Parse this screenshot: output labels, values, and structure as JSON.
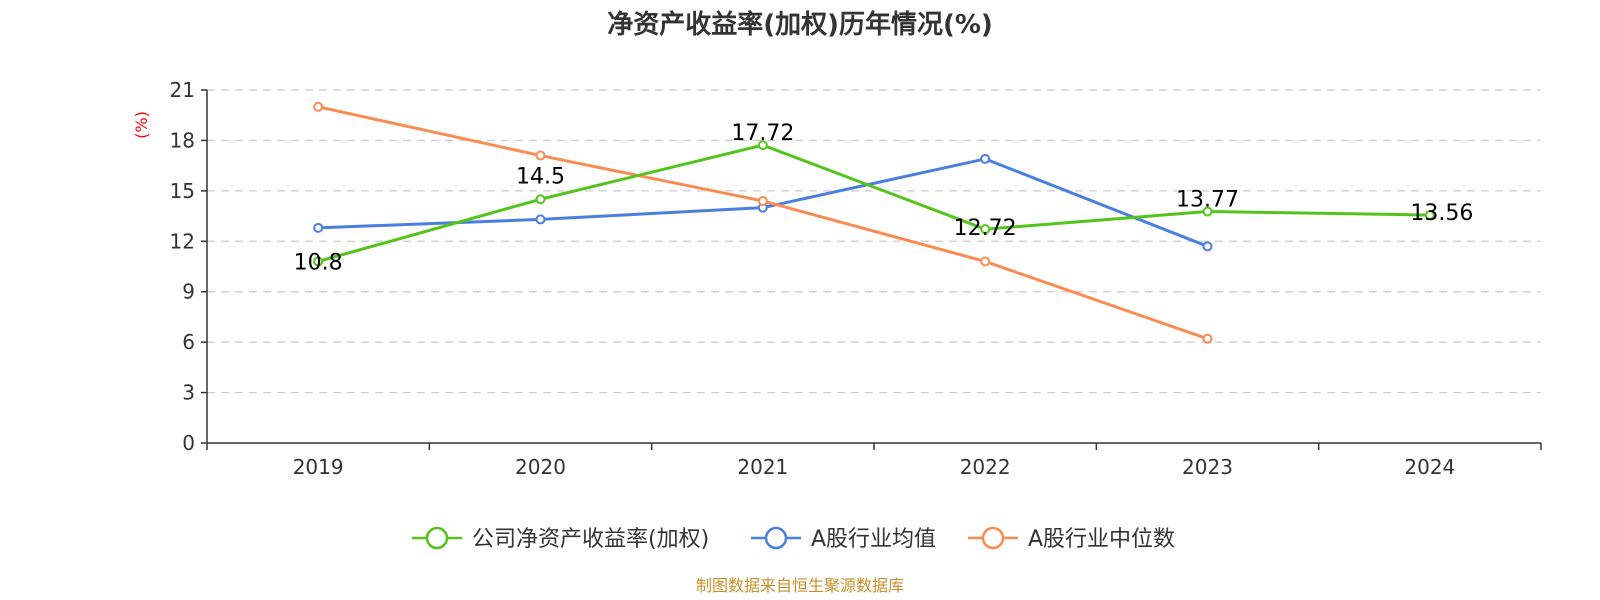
{
  "chart_data": {
    "type": "line",
    "title": "净资产收益率(加权)历年情况(%)",
    "ylabel": "(%)",
    "xlabel": "",
    "categories": [
      "2019",
      "2020",
      "2021",
      "2022",
      "2023",
      "2024"
    ],
    "ylim": [
      0,
      21
    ],
    "yticks": [
      0,
      3,
      6,
      9,
      12,
      15,
      18,
      21
    ],
    "grid": true,
    "legend_position": "bottom-center",
    "series": [
      {
        "name": "公司净资产收益率(加权)",
        "color": "#52c41a",
        "values": [
          10.8,
          14.5,
          17.72,
          12.72,
          13.77,
          13.56
        ],
        "data_labels": [
          "10.8",
          "14.5",
          "17.72",
          "12.72",
          "13.77",
          "13.56"
        ]
      },
      {
        "name": "A股行业均值",
        "color": "#4a7fe0",
        "values": [
          12.8,
          13.3,
          14.0,
          16.9,
          11.7,
          null
        ]
      },
      {
        "name": "A股行业中位数",
        "color": "#fa8c52",
        "values": [
          20.0,
          17.1,
          14.4,
          10.8,
          6.2,
          null
        ]
      }
    ]
  },
  "colors": {
    "ylabel": "#ff0000",
    "source": "#c8902a"
  },
  "footer": {
    "source": "制图数据来自恒生聚源数据库"
  }
}
